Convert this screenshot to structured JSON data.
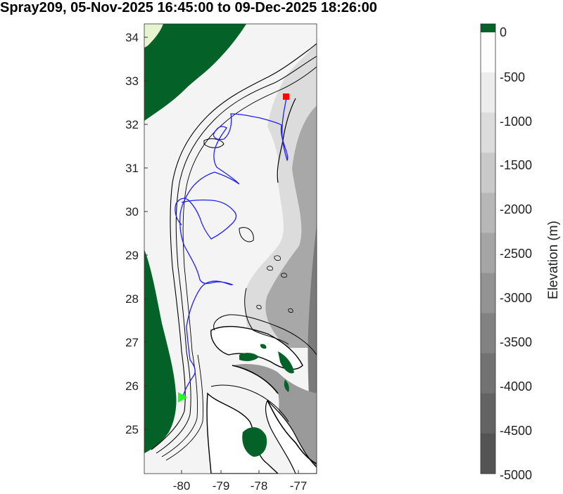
{
  "title": "Spray209, 05-Nov-2025 16:45:00 to 09-Dec-2025 18:26:00",
  "map": {
    "lon_ticks": [
      "-80",
      "-79",
      "-78",
      "-77"
    ],
    "lat_ticks": [
      "34",
      "33",
      "32",
      "31",
      "30",
      "29",
      "28",
      "27",
      "26",
      "25"
    ],
    "land_color": "#046228",
    "track_color": "#1f1fff",
    "start_marker": {
      "shape": "triangle",
      "color": "#22ff22",
      "lon": -80.0,
      "lat": 25.75
    },
    "end_marker": {
      "shape": "square",
      "color": "#ff0000",
      "lon": -77.3,
      "lat": 32.65
    }
  },
  "colorbar": {
    "label": "Elevation (m)",
    "ticks": [
      "0",
      "-500",
      "-1000",
      "-1500",
      "-2000",
      "-2500",
      "-3000",
      "-3500",
      "-4000",
      "-4500",
      "-5000"
    ],
    "colors": [
      "#fdfdfd",
      "#ececec",
      "#dcdcdc",
      "#c9c9c9",
      "#b7b7b7",
      "#a5a5a5",
      "#939393",
      "#828282",
      "#727272",
      "#636363",
      "#545454"
    ],
    "land_color": "#046228"
  }
}
